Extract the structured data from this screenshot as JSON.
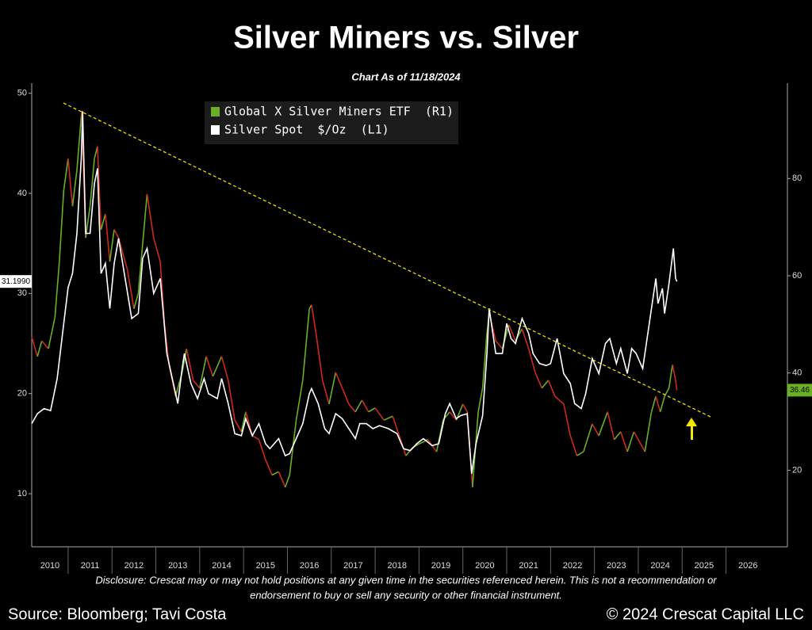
{
  "chart_data": {
    "type": "line",
    "title": "Silver Miners vs. Silver",
    "subtitle": "Chart As of 11/18/2024",
    "disclosure": [
      "Disclosure: Crescat may or may not hold positions at any given time in the securities referenced herein. This is not a recommendation or",
      "endorsement to buy or sell any security or other financial instrument."
    ],
    "source": "Source: Bloomberg; Tavi Costa",
    "copyright": "© 2024 Crescat Capital LLC",
    "xlim": [
      2010.17,
      2027.4
    ],
    "xticks": [
      2010,
      2011,
      2012,
      2013,
      2014,
      2015,
      2016,
      2017,
      2018,
      2019,
      2020,
      2021,
      2022,
      2023,
      2024,
      2025,
      2026
    ],
    "ylim": [
      4.7,
      51
    ],
    "yticks": [
      10,
      20,
      30,
      40,
      50
    ],
    "y2lim": [
      4.25,
      99.6
    ],
    "y2ticks": [
      20,
      40,
      60,
      80
    ],
    "series": [
      {
        "name": "Global X Silver Miners ETF  (R1)",
        "axis": "y2",
        "color": "#6ab023",
        "down_color": "#d0281e",
        "last_price": 36.46,
        "x": [
          2010.17,
          2010.3,
          2010.4,
          2010.55,
          2010.7,
          2010.8,
          2010.9,
          2011.0,
          2011.1,
          2011.2,
          2011.31,
          2011.4,
          2011.5,
          2011.6,
          2011.67,
          2011.75,
          2011.85,
          2011.95,
          2012.05,
          2012.15,
          2012.35,
          2012.5,
          2012.6,
          2012.8,
          2012.95,
          2013.1,
          2013.2,
          2013.3,
          2013.45,
          2013.6,
          2013.7,
          2013.85,
          2014.0,
          2014.15,
          2014.3,
          2014.5,
          2014.65,
          2014.8,
          2014.95,
          2015.05,
          2015.2,
          2015.35,
          2015.5,
          2015.65,
          2015.8,
          2015.95,
          2016.05,
          2016.2,
          2016.35,
          2016.5,
          2016.55,
          2016.65,
          2016.8,
          2016.95,
          2017.1,
          2017.25,
          2017.4,
          2017.55,
          2017.7,
          2017.85,
          2018.0,
          2018.2,
          2018.4,
          2018.55,
          2018.7,
          2018.85,
          2019.0,
          2019.2,
          2019.4,
          2019.55,
          2019.7,
          2019.85,
          2020.0,
          2020.1,
          2020.22,
          2020.35,
          2020.45,
          2020.55,
          2020.6,
          2020.75,
          2020.9,
          2021.05,
          2021.2,
          2021.35,
          2021.5,
          2021.65,
          2021.8,
          2021.95,
          2022.1,
          2022.3,
          2022.45,
          2022.6,
          2022.75,
          2022.95,
          2023.1,
          2023.3,
          2023.45,
          2023.6,
          2023.75,
          2023.9,
          2024.0,
          2024.15,
          2024.3,
          2024.4,
          2024.5,
          2024.6,
          2024.7,
          2024.78,
          2024.85,
          2024.88
        ],
        "values": [
          47.4,
          43.4,
          46.6,
          45,
          51.5,
          62.9,
          77.6,
          84.1,
          74.3,
          81.7,
          93.9,
          67.8,
          74.3,
          84.1,
          86.6,
          69.5,
          72.7,
          62.9,
          69.5,
          67.8,
          61.3,
          53.2,
          56.4,
          76.8,
          67.8,
          62.9,
          49.9,
          41.7,
          35.2,
          40.1,
          45,
          38.5,
          36.9,
          43.4,
          39.3,
          43.4,
          38.5,
          30.3,
          27.9,
          32,
          27.1,
          26.3,
          22.2,
          19,
          19.7,
          16.5,
          19,
          30.3,
          38.5,
          53.2,
          54,
          48.3,
          38.5,
          33.6,
          40.1,
          36.9,
          33.6,
          32,
          34.4,
          32,
          32.8,
          30.3,
          31.1,
          27.1,
          23,
          24.6,
          25.4,
          26.3,
          23.8,
          30.3,
          32,
          30.3,
          33.6,
          32,
          16.5,
          32,
          36.9,
          48.3,
          52.3,
          46.6,
          45,
          49.9,
          46.6,
          49.1,
          45,
          40.1,
          36.9,
          38.5,
          35.2,
          33.6,
          27.1,
          23,
          23.8,
          29.5,
          27.1,
          32,
          26.3,
          27.9,
          23.8,
          27.9,
          26.3,
          23.8,
          32,
          35.2,
          32,
          35.2,
          36.9,
          41.7,
          38.5,
          36.46
        ]
      },
      {
        "name": "Silver Spot  $/Oz  (L1)",
        "axis": "y",
        "color": "#ffffff",
        "last_price": {
          "value": 31.199,
          "label": "31.1990"
        },
        "x": [
          2010.17,
          2010.3,
          2010.45,
          2010.6,
          2010.75,
          2010.9,
          2011.0,
          2011.1,
          2011.2,
          2011.3,
          2011.33,
          2011.4,
          2011.5,
          2011.6,
          2011.67,
          2011.75,
          2011.85,
          2011.95,
          2012.05,
          2012.15,
          2012.3,
          2012.45,
          2012.6,
          2012.7,
          2012.8,
          2012.95,
          2013.1,
          2013.25,
          2013.35,
          2013.5,
          2013.6,
          2013.65,
          2013.8,
          2013.95,
          2014.1,
          2014.2,
          2014.4,
          2014.5,
          2014.65,
          2014.8,
          2014.95,
          2015.05,
          2015.2,
          2015.35,
          2015.5,
          2015.6,
          2015.8,
          2015.95,
          2016.05,
          2016.2,
          2016.35,
          2016.5,
          2016.55,
          2016.7,
          2016.85,
          2016.95,
          2017.1,
          2017.25,
          2017.4,
          2017.55,
          2017.65,
          2017.8,
          2017.95,
          2018.1,
          2018.3,
          2018.5,
          2018.65,
          2018.8,
          2018.95,
          2019.1,
          2019.3,
          2019.45,
          2019.6,
          2019.7,
          2019.85,
          2019.95,
          2020.1,
          2020.2,
          2020.3,
          2020.45,
          2020.55,
          2020.6,
          2020.75,
          2020.9,
          2021.0,
          2021.1,
          2021.2,
          2021.35,
          2021.5,
          2021.6,
          2021.75,
          2021.9,
          2022.0,
          2022.15,
          2022.3,
          2022.45,
          2022.55,
          2022.7,
          2022.8,
          2022.95,
          2023.1,
          2023.25,
          2023.35,
          2023.5,
          2023.6,
          2023.75,
          2023.85,
          2023.95,
          2024.1,
          2024.25,
          2024.4,
          2024.45,
          2024.55,
          2024.6,
          2024.7,
          2024.8,
          2024.85,
          2024.88
        ],
        "values": [
          17,
          18,
          18.5,
          18.3,
          21.5,
          27,
          30.6,
          32,
          36,
          43.5,
          48.2,
          36,
          36,
          41,
          42.5,
          32,
          33,
          28.5,
          33,
          35.5,
          31.5,
          27.5,
          28,
          33.5,
          34.5,
          30,
          31.5,
          24,
          22,
          19,
          22.5,
          24,
          21,
          19.5,
          21.5,
          20,
          19.5,
          21.5,
          19,
          16,
          15.8,
          17.5,
          15.8,
          17,
          15,
          14.5,
          15.5,
          13.8,
          14,
          15.5,
          17,
          20,
          20.5,
          19,
          16.5,
          16,
          18,
          17.5,
          16.5,
          15.5,
          17,
          17,
          16.5,
          16.8,
          16.5,
          16,
          14.5,
          14.3,
          15,
          15.5,
          14.8,
          15,
          18,
          19,
          17.5,
          17.8,
          18,
          12,
          15,
          17.8,
          24,
          28.5,
          24,
          24,
          27,
          25.5,
          25,
          27.5,
          26,
          24,
          23,
          22.8,
          23,
          25.5,
          22,
          21,
          19,
          18.5,
          20,
          23.5,
          22,
          25,
          25.5,
          23,
          24.5,
          22,
          24.5,
          24,
          22.5,
          27,
          31.5,
          29,
          30.5,
          28,
          31,
          34.5,
          31.5,
          31.199
        ]
      }
    ]
  }
}
